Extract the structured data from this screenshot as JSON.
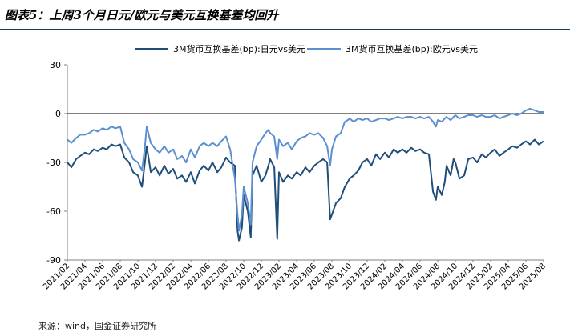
{
  "header": {
    "title": "图表5：上周3个月日元/欧元与美元互换基差均回升"
  },
  "footer": {
    "source": "来源：wind，国金证券研究所"
  },
  "chart_data": {
    "type": "line",
    "ylim": [
      -90,
      30
    ],
    "yticks": [
      30,
      0,
      -30,
      -60,
      -90
    ],
    "y_tick_labels": [
      "30",
      "0",
      "-30",
      "-60",
      "-90"
    ],
    "xlim": [
      "2021-02",
      "2025-08"
    ],
    "x_tick_labels": [
      "2021/02",
      "2021/04",
      "2021/06",
      "2021/08",
      "2021/10",
      "2021/12",
      "2022/02",
      "2022/04",
      "2022/06",
      "2022/08",
      "2022/10",
      "2022/12",
      "2023/02",
      "2023/04",
      "2023/06",
      "2023/08",
      "2023/10",
      "2023/12",
      "2024/02",
      "2024/04",
      "2024/06",
      "2024/08",
      "2024/10",
      "2024/12",
      "2025/02",
      "2025/04",
      "2025/06",
      "2025/08"
    ],
    "colors": {
      "jpy": "#1f4e79",
      "eur": "#5b8fd0",
      "zero_line": "#000000",
      "axis": "#808080"
    },
    "series": [
      {
        "name": "3M货币互换基差(bp):日元vs美元",
        "color": "#1f4e79",
        "points": [
          [
            "2021-02",
            -30
          ],
          [
            "2021-02-15",
            -33
          ],
          [
            "2021-03",
            -28
          ],
          [
            "2021-03-15",
            -26
          ],
          [
            "2021-04",
            -24
          ],
          [
            "2021-04-15",
            -25
          ],
          [
            "2021-05",
            -22
          ],
          [
            "2021-05-15",
            -23
          ],
          [
            "2021-06",
            -21
          ],
          [
            "2021-06-15",
            -22
          ],
          [
            "2021-07",
            -19
          ],
          [
            "2021-07-15",
            -20
          ],
          [
            "2021-08",
            -19
          ],
          [
            "2021-08-15",
            -27
          ],
          [
            "2021-09",
            -30
          ],
          [
            "2021-09-15",
            -36
          ],
          [
            "2021-10",
            -38
          ],
          [
            "2021-10-15",
            -45
          ],
          [
            "2021-10-25",
            -30
          ],
          [
            "2021-11",
            -20
          ],
          [
            "2021-11-15",
            -36
          ],
          [
            "2021-12",
            -33
          ],
          [
            "2021-12-15",
            -38
          ],
          [
            "2022-01",
            -32
          ],
          [
            "2022-01-15",
            -37
          ],
          [
            "2022-02",
            -34
          ],
          [
            "2022-02-15",
            -40
          ],
          [
            "2022-03",
            -38
          ],
          [
            "2022-03-15",
            -42
          ],
          [
            "2022-04",
            -36
          ],
          [
            "2022-04-15",
            -43
          ],
          [
            "2022-05",
            -35
          ],
          [
            "2022-05-15",
            -32
          ],
          [
            "2022-06",
            -35
          ],
          [
            "2022-06-15",
            -30
          ],
          [
            "2022-07",
            -36
          ],
          [
            "2022-07-15",
            -33
          ],
          [
            "2022-08",
            -27
          ],
          [
            "2022-08-15",
            -30
          ],
          [
            "2022-09",
            -32
          ],
          [
            "2022-09-10",
            -72
          ],
          [
            "2022-09-15",
            -78
          ],
          [
            "2022-09-25",
            -70
          ],
          [
            "2022-10",
            -50
          ],
          [
            "2022-10-15",
            -60
          ],
          [
            "2022-10-25",
            -76
          ],
          [
            "2022-11",
            -38
          ],
          [
            "2022-11-15",
            -32
          ],
          [
            "2022-12",
            -42
          ],
          [
            "2022-12-15",
            -38
          ],
          [
            "2022-12-25",
            -32
          ],
          [
            "2023-01",
            -28
          ],
          [
            "2023-01-15",
            -33
          ],
          [
            "2023-01-25",
            -77
          ],
          [
            "2023-02",
            -36
          ],
          [
            "2023-02-15",
            -42
          ],
          [
            "2023-03",
            -38
          ],
          [
            "2023-03-15",
            -40
          ],
          [
            "2023-04",
            -36
          ],
          [
            "2023-04-15",
            -38
          ],
          [
            "2023-05",
            -33
          ],
          [
            "2023-05-15",
            -36
          ],
          [
            "2023-06",
            -32
          ],
          [
            "2023-06-15",
            -30
          ],
          [
            "2023-07",
            -28
          ],
          [
            "2023-07-15",
            -30
          ],
          [
            "2023-07-25",
            -65
          ],
          [
            "2023-08",
            -62
          ],
          [
            "2023-08-15",
            -55
          ],
          [
            "2023-09",
            -52
          ],
          [
            "2023-09-15",
            -45
          ],
          [
            "2023-09-25",
            -42
          ],
          [
            "2023-10",
            -40
          ],
          [
            "2023-10-15",
            -38
          ],
          [
            "2023-11",
            -35
          ],
          [
            "2023-11-15",
            -30
          ],
          [
            "2023-12",
            -28
          ],
          [
            "2023-12-15",
            -32
          ],
          [
            "2024-01",
            -25
          ],
          [
            "2024-01-15",
            -28
          ],
          [
            "2024-02",
            -24
          ],
          [
            "2024-02-15",
            -27
          ],
          [
            "2024-03",
            -22
          ],
          [
            "2024-03-15",
            -24
          ],
          [
            "2024-04",
            -22
          ],
          [
            "2024-04-15",
            -24
          ],
          [
            "2024-05",
            -21
          ],
          [
            "2024-05-15",
            -23
          ],
          [
            "2024-06",
            -22
          ],
          [
            "2024-06-15",
            -24
          ],
          [
            "2024-07",
            -25
          ],
          [
            "2024-07-15",
            -48
          ],
          [
            "2024-07-25",
            -53
          ],
          [
            "2024-08",
            -45
          ],
          [
            "2024-08-15",
            -50
          ],
          [
            "2024-08-25",
            -42
          ],
          [
            "2024-09",
            -32
          ],
          [
            "2024-09-15",
            -38
          ],
          [
            "2024-09-25",
            -28
          ],
          [
            "2024-10",
            -30
          ],
          [
            "2024-10-15",
            -40
          ],
          [
            "2024-11",
            -38
          ],
          [
            "2024-11-15",
            -28
          ],
          [
            "2024-12",
            -27
          ],
          [
            "2024-12-15",
            -30
          ],
          [
            "2025-01",
            -25
          ],
          [
            "2025-01-15",
            -27
          ],
          [
            "2025-02",
            -24
          ],
          [
            "2025-02-15",
            -22
          ],
          [
            "2025-03",
            -26
          ],
          [
            "2025-03-15",
            -24
          ],
          [
            "2025-04",
            -22
          ],
          [
            "2025-04-15",
            -20
          ],
          [
            "2025-05",
            -21
          ],
          [
            "2025-05-15",
            -19
          ],
          [
            "2025-06",
            -17
          ],
          [
            "2025-06-15",
            -19
          ],
          [
            "2025-07",
            -16
          ],
          [
            "2025-07-15",
            -19
          ],
          [
            "2025-08",
            -17
          ]
        ]
      },
      {
        "name": "3M货币互换基差(bp):欧元vs美元",
        "color": "#5b8fd0",
        "points": [
          [
            "2021-02",
            -16
          ],
          [
            "2021-02-15",
            -18
          ],
          [
            "2021-03",
            -15
          ],
          [
            "2021-03-15",
            -13
          ],
          [
            "2021-04",
            -13
          ],
          [
            "2021-04-15",
            -12
          ],
          [
            "2021-05",
            -10
          ],
          [
            "2021-05-15",
            -11
          ],
          [
            "2021-06",
            -9
          ],
          [
            "2021-06-15",
            -10
          ],
          [
            "2021-07",
            -8
          ],
          [
            "2021-07-15",
            -9
          ],
          [
            "2021-08",
            -8
          ],
          [
            "2021-08-15",
            -18
          ],
          [
            "2021-09",
            -22
          ],
          [
            "2021-09-15",
            -28
          ],
          [
            "2021-10",
            -30
          ],
          [
            "2021-10-15",
            -35
          ],
          [
            "2021-10-25",
            -20
          ],
          [
            "2021-11",
            -8
          ],
          [
            "2021-11-15",
            -18
          ],
          [
            "2021-12",
            -22
          ],
          [
            "2021-12-15",
            -24
          ],
          [
            "2022-01",
            -20
          ],
          [
            "2022-01-15",
            -24
          ],
          [
            "2022-02",
            -22
          ],
          [
            "2022-02-15",
            -28
          ],
          [
            "2022-03",
            -26
          ],
          [
            "2022-03-15",
            -30
          ],
          [
            "2022-04",
            -22
          ],
          [
            "2022-04-15",
            -27
          ],
          [
            "2022-05",
            -20
          ],
          [
            "2022-05-15",
            -18
          ],
          [
            "2022-06",
            -20
          ],
          [
            "2022-06-15",
            -18
          ],
          [
            "2022-07",
            -20
          ],
          [
            "2022-07-15",
            -17
          ],
          [
            "2022-08",
            -14
          ],
          [
            "2022-08-15",
            -22
          ],
          [
            "2022-09",
            -40
          ],
          [
            "2022-09-10",
            -62
          ],
          [
            "2022-09-15",
            -72
          ],
          [
            "2022-09-25",
            -62
          ],
          [
            "2022-10",
            -45
          ],
          [
            "2022-10-15",
            -55
          ],
          [
            "2022-10-25",
            -68
          ],
          [
            "2022-11",
            -30
          ],
          [
            "2022-11-15",
            -20
          ],
          [
            "2022-12",
            -16
          ],
          [
            "2022-12-15",
            -12
          ],
          [
            "2022-12-25",
            -10
          ],
          [
            "2023-01",
            -12
          ],
          [
            "2023-01-15",
            -14
          ],
          [
            "2023-01-25",
            -28
          ],
          [
            "2023-02",
            -16
          ],
          [
            "2023-02-15",
            -20
          ],
          [
            "2023-03",
            -18
          ],
          [
            "2023-03-15",
            -22
          ],
          [
            "2023-04",
            -17
          ],
          [
            "2023-04-15",
            -15
          ],
          [
            "2023-05",
            -14
          ],
          [
            "2023-05-15",
            -12
          ],
          [
            "2023-06",
            -13
          ],
          [
            "2023-06-15",
            -12
          ],
          [
            "2023-07",
            -15
          ],
          [
            "2023-07-15",
            -20
          ],
          [
            "2023-07-25",
            -32
          ],
          [
            "2023-08",
            -22
          ],
          [
            "2023-08-15",
            -14
          ],
          [
            "2023-09",
            -12
          ],
          [
            "2023-09-15",
            -5
          ],
          [
            "2023-09-25",
            -4
          ],
          [
            "2023-10",
            -3
          ],
          [
            "2023-10-15",
            -5
          ],
          [
            "2023-11",
            -3
          ],
          [
            "2023-11-15",
            -4
          ],
          [
            "2023-12",
            -3
          ],
          [
            "2023-12-15",
            -5
          ],
          [
            "2024-01",
            -4
          ],
          [
            "2024-01-15",
            -3
          ],
          [
            "2024-02",
            -3
          ],
          [
            "2024-02-15",
            -4
          ],
          [
            "2024-03",
            -3
          ],
          [
            "2024-03-15",
            -2
          ],
          [
            "2024-04",
            -3
          ],
          [
            "2024-04-15",
            -2
          ],
          [
            "2024-05",
            -2
          ],
          [
            "2024-05-15",
            -3
          ],
          [
            "2024-06",
            -2
          ],
          [
            "2024-06-15",
            -3
          ],
          [
            "2024-07",
            -2
          ],
          [
            "2024-07-15",
            -5
          ],
          [
            "2024-07-25",
            -8
          ],
          [
            "2024-08",
            -4
          ],
          [
            "2024-08-15",
            -5
          ],
          [
            "2024-08-25",
            -3
          ],
          [
            "2024-09",
            -2
          ],
          [
            "2024-09-15",
            -4
          ],
          [
            "2024-09-25",
            -2
          ],
          [
            "2024-10",
            -1
          ],
          [
            "2024-10-15",
            -3
          ],
          [
            "2024-11",
            -2
          ],
          [
            "2024-11-15",
            -1
          ],
          [
            "2024-12",
            -1
          ],
          [
            "2024-12-15",
            -2
          ],
          [
            "2025-01",
            -1
          ],
          [
            "2025-01-15",
            -2
          ],
          [
            "2025-02",
            -2
          ],
          [
            "2025-02-15",
            -1
          ],
          [
            "2025-03",
            -3
          ],
          [
            "2025-03-15",
            -2
          ],
          [
            "2025-04",
            -1
          ],
          [
            "2025-04-15",
            0
          ],
          [
            "2025-05",
            -1
          ],
          [
            "2025-05-15",
            0
          ],
          [
            "2025-06",
            2
          ],
          [
            "2025-06-15",
            3
          ],
          [
            "2025-07",
            2
          ],
          [
            "2025-07-15",
            1
          ],
          [
            "2025-08",
            1
          ]
        ]
      }
    ]
  }
}
